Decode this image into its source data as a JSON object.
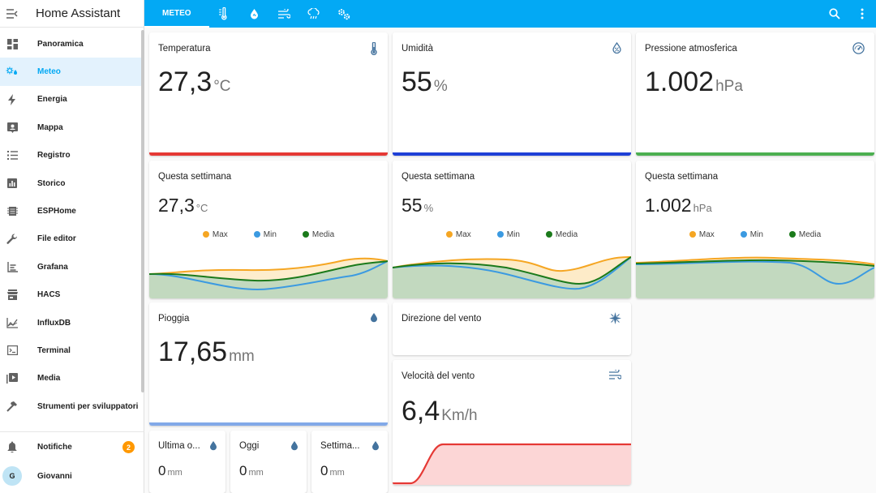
{
  "app_title": "Home Assistant",
  "sidebar": {
    "items": [
      {
        "label": "Panoramica",
        "icon": "dashboard-icon"
      },
      {
        "label": "Meteo",
        "icon": "weather-icon",
        "active": true
      },
      {
        "label": "Energia",
        "icon": "lightning-icon"
      },
      {
        "label": "Mappa",
        "icon": "map-icon"
      },
      {
        "label": "Registro",
        "icon": "list-icon"
      },
      {
        "label": "Storico",
        "icon": "chart-box-icon"
      },
      {
        "label": "ESPHome",
        "icon": "esphome-icon"
      },
      {
        "label": "File editor",
        "icon": "wrench-icon"
      },
      {
        "label": "Grafana",
        "icon": "grafana-icon"
      },
      {
        "label": "HACS",
        "icon": "store-icon"
      },
      {
        "label": "InfluxDB",
        "icon": "line-chart-icon"
      },
      {
        "label": "Terminal",
        "icon": "terminal-icon"
      },
      {
        "label": "Media",
        "icon": "media-icon"
      },
      {
        "label": "Strumenti per sviluppatori",
        "icon": "hammer-icon"
      }
    ],
    "notifications": {
      "label": "Notifiche",
      "count": "2"
    },
    "user": {
      "name": "Giovanni",
      "initial": "G"
    }
  },
  "topbar": {
    "active_tab": "METEO",
    "tab_icons": [
      "thermometer-icon",
      "water-drop-icon",
      "wind-icon",
      "rain-cloud-icon",
      "cogs-icon"
    ],
    "right_icons": [
      "search-icon",
      "more-vertical-icon"
    ]
  },
  "colors": {
    "accent": "#03a9f4",
    "temperature": "#e53935",
    "humidity": "#1e3fd6",
    "pressure": "#4caf50",
    "rain": "#82a9e8",
    "max": "#f5a623",
    "min": "#3b9ae1",
    "media": "#1b7a1b",
    "wind": "#e53935"
  },
  "cards": {
    "temperature": {
      "title": "Temperatura",
      "value": "27,3",
      "unit": "°C"
    },
    "humidity": {
      "title": "Umidità",
      "value": "55",
      "unit": "%"
    },
    "pressure": {
      "title": "Pressione atmosferica",
      "value": "1.002",
      "unit": "hPa"
    },
    "week_temp": {
      "title": "Questa settimana",
      "value": "27,3",
      "unit": "°C"
    },
    "week_hum": {
      "title": "Questa settimana",
      "value": "55",
      "unit": "%"
    },
    "week_press": {
      "title": "Questa settimana",
      "value": "1.002",
      "unit": "hPa"
    },
    "rain": {
      "title": "Pioggia",
      "value": "17,65",
      "unit": "mm"
    },
    "wind_dir": {
      "title": "Direzione del vento"
    },
    "wind_speed": {
      "title": "Velocità del vento",
      "value": "6,4",
      "unit": "Km/h"
    },
    "rain_last": {
      "title": "Ultima o...",
      "value": "0",
      "unit": "mm"
    },
    "rain_today": {
      "title": "Oggi",
      "value": "0",
      "unit": "mm"
    },
    "rain_week": {
      "title": "Settima...",
      "value": "0",
      "unit": "mm"
    }
  },
  "legend": {
    "max": "Max",
    "min": "Min",
    "media": "Media"
  }
}
